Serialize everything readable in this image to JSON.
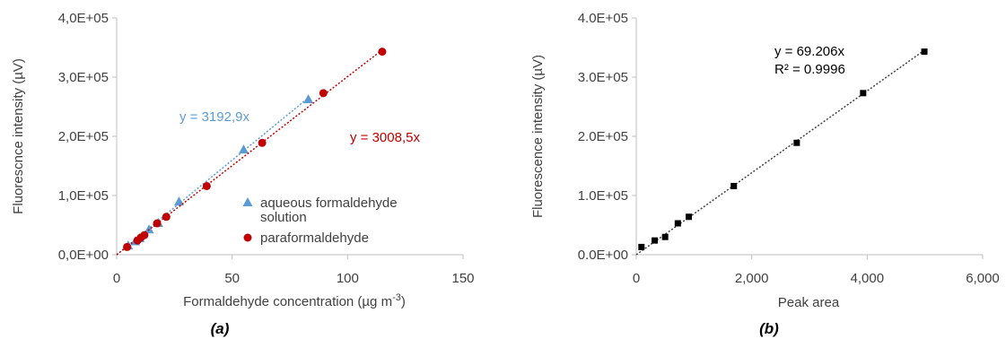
{
  "chart_data": [
    {
      "id": "a",
      "type": "scatter",
      "panel_label": "(a)",
      "xlabel": "Formaldehyde concentration (µg m",
      "xlabel_sup": "-3",
      "xlabel_end": ")",
      "ylabel": "Fluorescnce intensity (µV)",
      "xlim": [
        0,
        150
      ],
      "ylim": [
        0,
        400000
      ],
      "x_ticks": [
        {
          "v": 0,
          "label": "0"
        },
        {
          "v": 50,
          "label": "50"
        },
        {
          "v": 100,
          "label": "100"
        },
        {
          "v": 150,
          "label": "150"
        }
      ],
      "y_ticks": [
        {
          "v": 0,
          "label": "0,0E+00"
        },
        {
          "v": 100000,
          "label": "1,0E+05"
        },
        {
          "v": 200000,
          "label": "2,0E+05"
        },
        {
          "v": 300000,
          "label": "3,0E+05"
        },
        {
          "v": 400000,
          "label": "4,0E+05"
        }
      ],
      "grid": false,
      "legend_position": "bottom-right",
      "series": [
        {
          "name": "aqueous formaldehyde solution",
          "legend_lines": [
            "aqueous formaldehyde",
            "solution"
          ],
          "marker": "triangle",
          "color": "#5b9bd5",
          "trendline_equation": "y = 3192,9x",
          "slope": 3192.9,
          "trend_x_end": 83,
          "points": [
            [
              5,
              15000
            ],
            [
              8,
              22000
            ],
            [
              10,
              27000
            ],
            [
              14,
              42000
            ],
            [
              18,
              53000
            ],
            [
              27,
              89000
            ],
            [
              55,
              177000
            ],
            [
              83,
              262000
            ]
          ]
        },
        {
          "name": "paraformaldehyde",
          "legend_lines": [
            "paraformaldehyde"
          ],
          "marker": "circle",
          "color": "#c00000",
          "trendline_equation": "y = 3008,5x",
          "slope": 3008.5,
          "trend_x_end": 115,
          "points": [
            [
              4.5,
              13000
            ],
            [
              9,
              24000
            ],
            [
              10.5,
              29000
            ],
            [
              12,
              33000
            ],
            [
              17.5,
              53000
            ],
            [
              21.5,
              64000
            ],
            [
              39,
              116000
            ],
            [
              63,
              189000
            ],
            [
              89.5,
              273000
            ],
            [
              115,
              343000
            ]
          ]
        }
      ]
    },
    {
      "id": "b",
      "type": "scatter",
      "panel_label": "(b)",
      "xlabel": "Peak area",
      "ylabel": "Fluorescence intensity (µV)",
      "xlim": [
        0,
        6000
      ],
      "ylim": [
        0,
        400000
      ],
      "x_ticks": [
        {
          "v": 0,
          "label": "0"
        },
        {
          "v": 2000,
          "label": "2,000"
        },
        {
          "v": 4000,
          "label": "4,000"
        },
        {
          "v": 6000,
          "label": "6,000"
        }
      ],
      "y_ticks": [
        {
          "v": 0,
          "label": "0.0E+00"
        },
        {
          "v": 100000,
          "label": "1.0E+05"
        },
        {
          "v": 200000,
          "label": "2.0E+05"
        },
        {
          "v": 300000,
          "label": "3.0E+05"
        },
        {
          "v": 400000,
          "label": "4.0E+05"
        }
      ],
      "grid": false,
      "trendline_equation": "y = 69.206x",
      "r_squared": "R² = 0.9996",
      "series": [
        {
          "marker": "square",
          "color": "#000000",
          "slope": 69.206,
          "trend_x_end": 5000,
          "points": [
            [
              90,
              13000
            ],
            [
              320,
              24000
            ],
            [
              500,
              30000
            ],
            [
              720,
              53000
            ],
            [
              910,
              64000
            ],
            [
              1690,
              116000
            ],
            [
              2780,
              189000
            ],
            [
              3930,
              273000
            ],
            [
              4990,
              343000
            ]
          ]
        }
      ]
    }
  ]
}
